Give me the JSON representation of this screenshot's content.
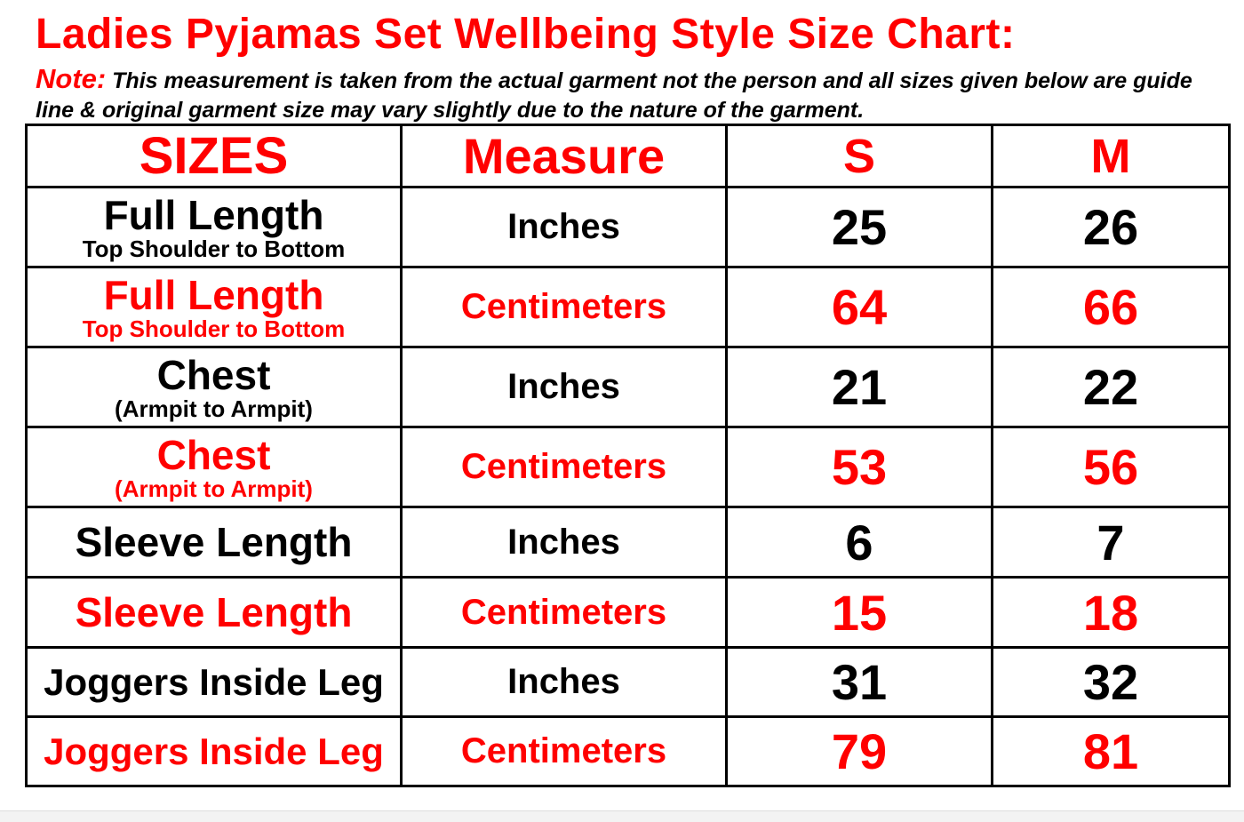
{
  "title": "Ladies Pyjamas Set Wellbeing Style Size Chart:",
  "note": {
    "label": "Note:",
    "text": " This measurement is taken from the actual garment not the person and all sizes given below are guide line & original garment size may vary slightly due to the nature of the garment."
  },
  "colors": {
    "accent": "#ff0000",
    "text": "#000000"
  },
  "table": {
    "headers": [
      "SIZES",
      "Measure",
      "S",
      "M"
    ],
    "rows": [
      {
        "label": "Full Length",
        "sublabel": "Top Shoulder to Bottom",
        "measure": "Inches",
        "s": "25",
        "m": "26",
        "color": "black"
      },
      {
        "label": "Full Length",
        "sublabel": "Top Shoulder to Bottom",
        "measure": "Centimeters",
        "s": "64",
        "m": "66",
        "color": "red"
      },
      {
        "label": "Chest",
        "sublabel": "(Armpit to Armpit)",
        "measure": "Inches",
        "s": "21",
        "m": "22",
        "color": "black"
      },
      {
        "label": "Chest",
        "sublabel": "(Armpit to Armpit)",
        "measure": "Centimeters",
        "s": "53",
        "m": "56",
        "color": "red"
      },
      {
        "label": "Sleeve Length",
        "measure": "Inches",
        "s": "6",
        "m": "7",
        "color": "black"
      },
      {
        "label": "Sleeve Length",
        "measure": "Centimeters",
        "s": "15",
        "m": "18",
        "color": "red"
      },
      {
        "label": "Joggers Inside Leg",
        "measure": "Inches",
        "s": "31",
        "m": "32",
        "color": "black"
      },
      {
        "label": "Joggers Inside Leg",
        "measure": "Centimeters",
        "s": "79",
        "m": "81",
        "color": "red"
      }
    ]
  }
}
